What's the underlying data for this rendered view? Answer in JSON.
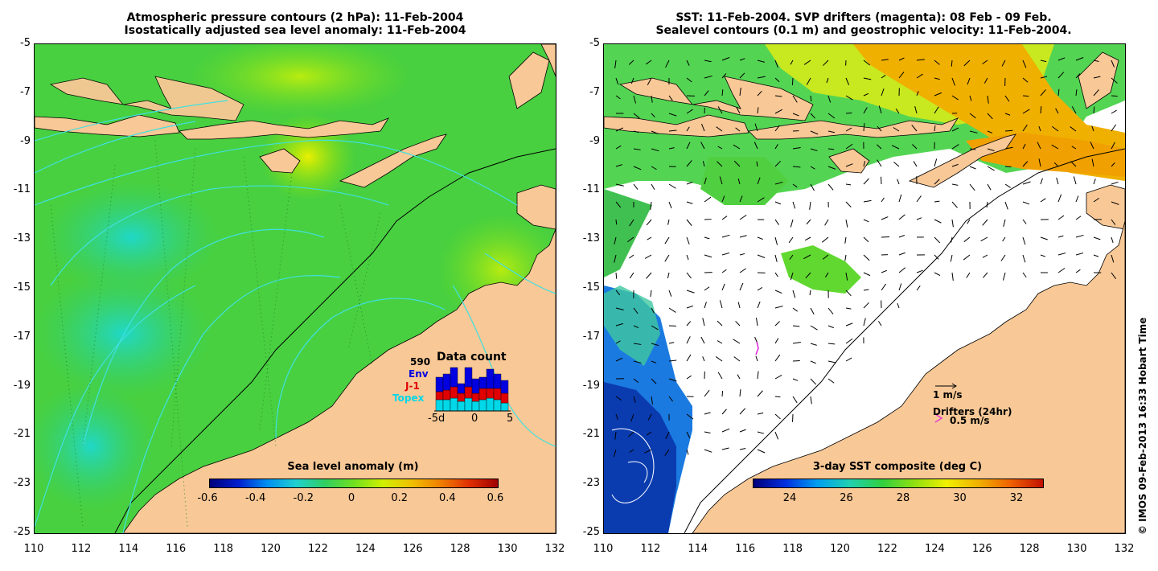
{
  "left_panel": {
    "title_line1": "Atmospheric pressure contours (2 hPa): 11-Feb-2004",
    "title_line2": "Isostatically adjusted sea level anomaly: 11-Feb-2004",
    "y_ticks": [
      "-5",
      "-7",
      "-9",
      "-11",
      "-13",
      "-15",
      "-17",
      "-19",
      "-21",
      "-23",
      "-25"
    ],
    "x_ticks": [
      "110",
      "112",
      "114",
      "116",
      "118",
      "120",
      "122",
      "124",
      "126",
      "128",
      "130",
      "132"
    ],
    "colorbar_title": "Sea level anomaly (m)",
    "colorbar_ticks": [
      "-0.6",
      "-0.4",
      "-0.2",
      "0",
      "0.2",
      "0.4",
      "0.6"
    ],
    "inset": {
      "title": "Data count",
      "total": "590",
      "labels": [
        "Env",
        "J-1",
        "Topex"
      ],
      "label_colors": [
        "#0000e0",
        "#e00000",
        "#00d8e8"
      ],
      "x_ticks": [
        "-5d",
        "0",
        "5"
      ]
    }
  },
  "right_panel": {
    "title_line1": "SST: 11-Feb-2004. SVP drifters (magenta): 08 Feb - 09 Feb.",
    "title_line2": "Sealevel contours (0.1 m) and geostrophic velocity: 11-Feb-2004.",
    "y_ticks": [
      "-5",
      "-7",
      "-9",
      "-11",
      "-13",
      "-15",
      "-17",
      "-19",
      "-21",
      "-23",
      "-25"
    ],
    "x_ticks": [
      "110",
      "112",
      "114",
      "116",
      "118",
      "120",
      "122",
      "124",
      "126",
      "128",
      "130",
      "132"
    ],
    "colorbar_title": "3-day SST composite (deg C)",
    "colorbar_ticks": [
      "24",
      "26",
      "28",
      "30",
      "32"
    ],
    "legend_velocity": "1 m/s",
    "legend_drifters_title": "Drifters (24hr)",
    "legend_drifters_speed": "0.5 m/s"
  },
  "copyright": "© IMOS 09-Feb-2013 16:33 Hobart Time",
  "colors": {
    "land": "#f8c896",
    "ocean_green": "#3ecf3e",
    "ocean_cyan": "#2fd8b0",
    "contour": "#40e0e0"
  }
}
